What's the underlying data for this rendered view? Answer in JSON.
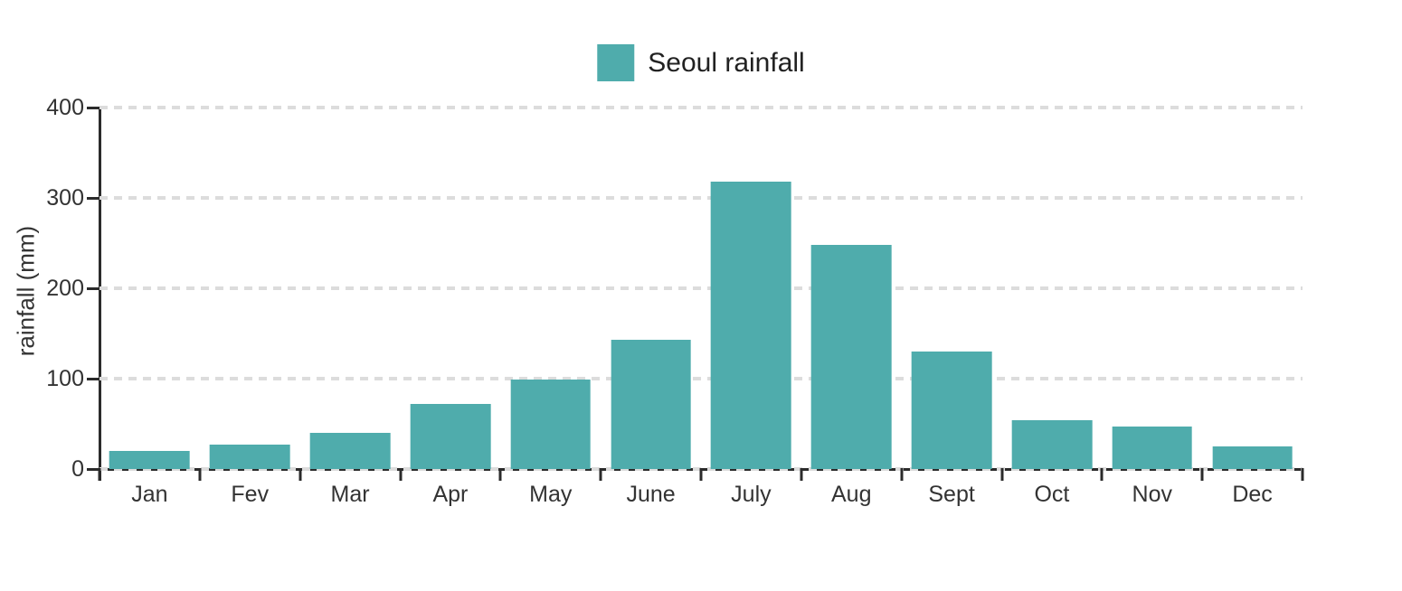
{
  "chart_data": {
    "type": "bar",
    "title": "Seoul rainfall",
    "series_name": "Seoul rainfall",
    "categories": [
      "Jan",
      "Fev",
      "Mar",
      "Apr",
      "May",
      "June",
      "July",
      "Aug",
      "Sept",
      "Oct",
      "Nov",
      "Dec"
    ],
    "values": [
      20,
      27,
      40,
      72,
      99,
      143,
      318,
      248,
      130,
      54,
      47,
      25
    ],
    "xlabel": "",
    "ylabel": "rainfall (mm)",
    "ylim": [
      0,
      400
    ],
    "yticks": [
      0,
      100,
      200,
      300,
      400
    ],
    "grid": "horizontal-dashed",
    "legend_position": "top-center",
    "bar_width_fraction": 0.8,
    "colors": {
      "bar": "#4FACAC",
      "grid": "#DCDCDC",
      "axis": "#2B2B2B",
      "tick_text": "#333333",
      "title_text": "#212121",
      "background": "#FFFFFF"
    }
  }
}
